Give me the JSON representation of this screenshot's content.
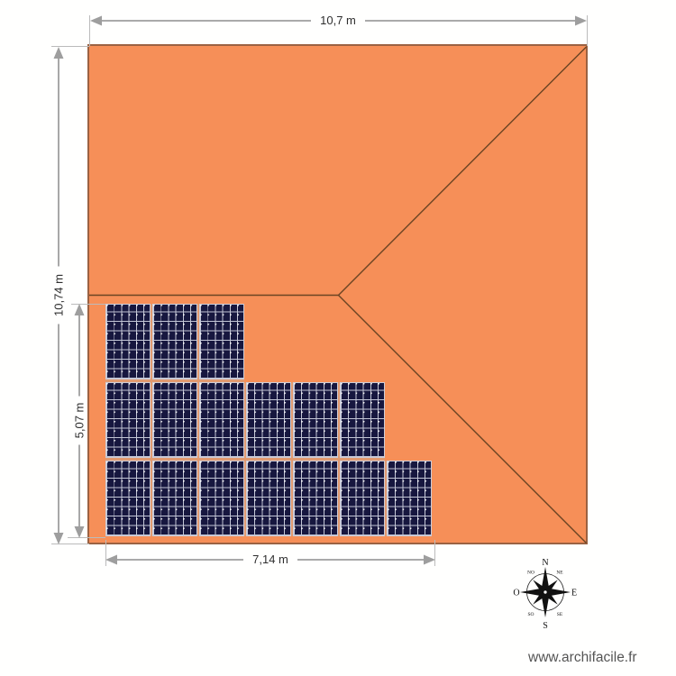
{
  "watermark": "www.archifacile.fr",
  "dimensions": {
    "roof_width_label": "10,7 m",
    "roof_height_label": "10,74 m",
    "array_height_label": "5,07 m",
    "array_width_label": "7,14 m"
  },
  "solar_array": {
    "rows": [
      {
        "panels": 3
      },
      {
        "panels": 6
      },
      {
        "panels": 7
      }
    ],
    "total_panels": 16
  },
  "compass": {
    "north": "N",
    "south": "S",
    "east": "E",
    "west": "O",
    "northeast": "NE",
    "northwest": "NO",
    "southeast": "SE",
    "southwest": "SO"
  },
  "colors": {
    "roof_fill": "#f68f58",
    "roof_border": "#9b6242",
    "ridge_line": "#6b4423",
    "panel_cell": "#17173f",
    "panel_grid_line": "#c3c6d6",
    "panel_border": "#ccccd8",
    "rail": "#e19a70",
    "dimension_line": "#9e9e9e",
    "extension_line": "#bbbbbb",
    "dimension_text": "#2e2e2e",
    "watermark_text": "#555555",
    "compass": "#111111"
  }
}
